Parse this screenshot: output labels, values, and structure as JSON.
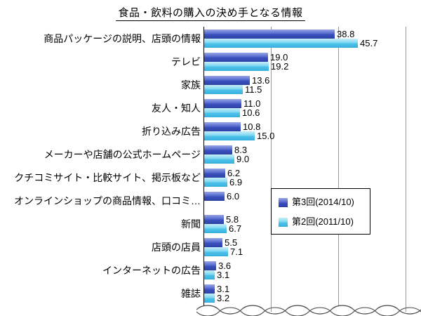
{
  "title": "食品・飲料の購入の決め手となる情報",
  "legend": {
    "items": [
      {
        "label": "第3回(2014/10)",
        "color": "#3f54c1"
      },
      {
        "label": "第2回(2011/10)",
        "color": "#4fc3e8"
      }
    ]
  },
  "chart_data": {
    "type": "bar",
    "orientation": "horizontal",
    "title": "食品・飲料の購入の決め手となる情報",
    "categories": [
      "商品パッケージの説明、店頭の情報",
      "テレビ",
      "家族",
      "友人・知人",
      "折り込み広告",
      "メーカーや店舗の公式ホームページ",
      "クチコミサイト・比較サイト、掲示板など",
      "オンラインショップの商品情報、口コミ…",
      "新聞",
      "店頭の店員",
      "インターネットの広告",
      "雑誌"
    ],
    "series": [
      {
        "name": "第3回(2014/10)",
        "color": "#3f54c1",
        "values": [
          38.8,
          19.0,
          13.6,
          11.0,
          10.8,
          8.3,
          6.2,
          6.0,
          5.8,
          5.5,
          3.6,
          3.1
        ]
      },
      {
        "name": "第2回(2011/10)",
        "color": "#4fc3e8",
        "values": [
          45.7,
          19.2,
          11.5,
          10.6,
          15.0,
          9.0,
          6.9,
          null,
          6.7,
          7.1,
          3.1,
          3.2
        ]
      }
    ],
    "value_labels": true,
    "value_format": "0.0",
    "xlim": [
      0,
      60
    ],
    "gridline_interval": 20,
    "x_axis_tick_labels_visible": false,
    "legend_position": "middle-right",
    "torn_bottom_edge": true
  }
}
